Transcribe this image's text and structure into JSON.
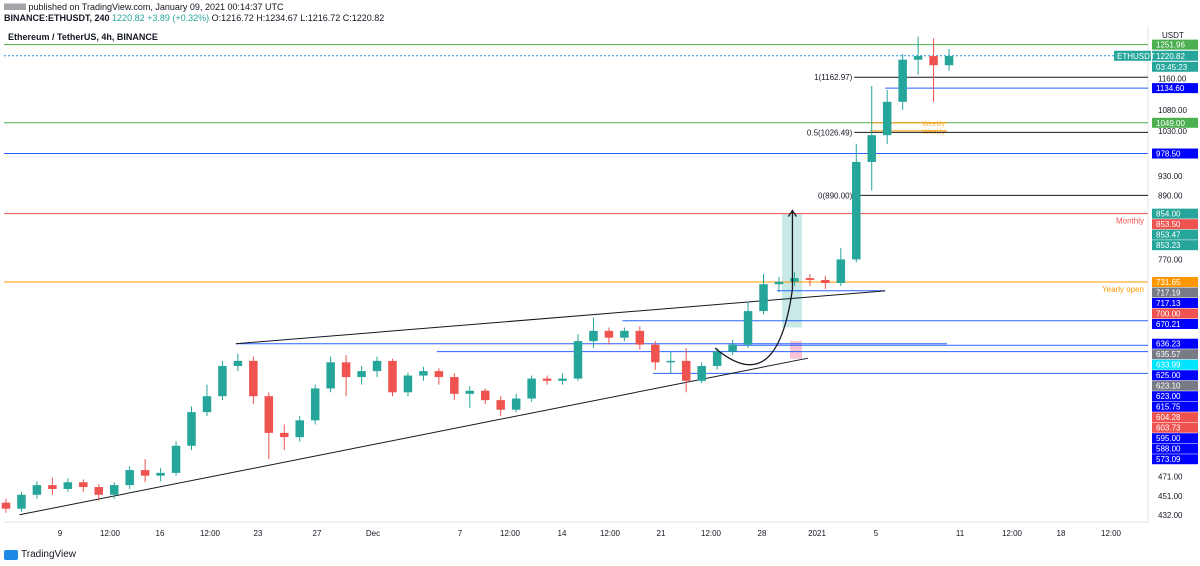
{
  "header": {
    "publisher": "lllllllllll published on TradingView.com, January 09, 2021 00:14:37 UTC",
    "symbol": "BINANCE:ETHUSDT, 240",
    "last": "1220.82",
    "change": "+3.89 (+0.32%)",
    "ohlc": "O:1216.72 H:1234.67 L:1216.72 C:1220.82"
  },
  "footer": {
    "brand": "TradingView"
  },
  "colors": {
    "up": "#26a69a",
    "down": "#ef5350",
    "blue": "#2962ff",
    "navy": "#0000ff",
    "green_line": "#4caf50",
    "red_line": "#ef5350",
    "orange_line": "#ff9800",
    "fib": "#131722",
    "teal_box": "#b2dfdb",
    "pink_box": "#f8bbd0"
  },
  "chart_data": {
    "type": "candlestick",
    "title": "Ethereum / TetherUS, 4h, BINANCE",
    "axis": {
      "unit": "USDT",
      "y_ticks": [
        1160.0,
        1080.0,
        1030.0,
        930.0,
        890.0,
        770.0,
        471.0,
        451.0,
        432.0
      ],
      "x_ticks": [
        "9",
        "12:00",
        "16",
        "12:00",
        "23",
        "27",
        "Dec",
        "7",
        "12:00",
        "14",
        "12:00",
        "21",
        "12:00",
        "28",
        "2021",
        "5",
        "11",
        "12:00",
        "18",
        "12:00"
      ],
      "x_range": [
        "2020-11-09",
        "2021-01-22"
      ],
      "y_range": [
        425,
        1300
      ],
      "scale": "log"
    },
    "price_labels": [
      {
        "value": "1251.96",
        "color": "#4caf50"
      },
      {
        "value": "1220.82",
        "color": "#26a69a",
        "tag": "ETHUSDT"
      },
      {
        "value": "03:45:23",
        "color": "#26a69a"
      },
      {
        "value": "1134.60",
        "color": "#0000ff"
      },
      {
        "value": "1049.00",
        "color": "#4caf50"
      },
      {
        "value": "978.50",
        "color": "#0000ff"
      },
      {
        "value": "854.00",
        "color": "#26a69a"
      },
      {
        "value": "853.50",
        "color": "#ef5350"
      },
      {
        "value": "853.47",
        "color": "#26a69a"
      },
      {
        "value": "853.23",
        "color": "#26a69a"
      },
      {
        "value": "731.65",
        "color": "#ff9800"
      },
      {
        "value": "717.19",
        "color": "#787b86"
      },
      {
        "value": "717.13",
        "color": "#0000ff"
      },
      {
        "value": "700.00",
        "color": "#ef5350"
      },
      {
        "value": "670.21",
        "color": "#0000ff"
      },
      {
        "value": "636.23",
        "color": "#0000ff"
      },
      {
        "value": "635.57",
        "color": "#787b86"
      },
      {
        "value": "633.99",
        "color": "#00e5ff"
      },
      {
        "value": "625.00",
        "color": "#0000ff"
      },
      {
        "value": "623.10",
        "color": "#787b86"
      },
      {
        "value": "623.00",
        "color": "#0000ff"
      },
      {
        "value": "615.75",
        "color": "#0000ff"
      },
      {
        "value": "604.28",
        "color": "#ef5350"
      },
      {
        "value": "603.73",
        "color": "#ef5350"
      },
      {
        "value": "595.00",
        "color": "#0000ff"
      },
      {
        "value": "588.00",
        "color": "#0000ff"
      },
      {
        "value": "573.09",
        "color": "#0000ff"
      }
    ],
    "horizontal_lines": [
      {
        "value": 1251.96,
        "color": "#4caf50"
      },
      {
        "value": 1220.82,
        "color": "#2196f3",
        "style": "dotted"
      },
      {
        "value": 1049.0,
        "color": "#4caf50"
      },
      {
        "value": 978.5,
        "color": "#2962ff"
      },
      {
        "value": 854.0,
        "color": "#ef5350",
        "label": "Monthly"
      },
      {
        "value": 731.65,
        "color": "#ff9800",
        "label": "Yearly open"
      }
    ],
    "segment_lines": [
      {
        "x0": "2020-11-24",
        "x1": "2021-01-09",
        "value": 636.23,
        "color": "#2962ff"
      },
      {
        "x0": "2020-12-26",
        "x1": "2021-01-22",
        "value": 633.99,
        "color": "#2962ff"
      },
      {
        "x0": "2020-12-07",
        "x1": "2021-01-22",
        "value": 625.0,
        "color": "#2962ff"
      },
      {
        "x0": "2020-12-19",
        "x1": "2021-01-22",
        "value": 670.21,
        "color": "#2962ff"
      },
      {
        "x0": "2020-12-21",
        "x1": "2021-01-22",
        "value": 595.0,
        "color": "#2962ff"
      },
      {
        "x0": "2020-12-29",
        "x1": "2021-01-05",
        "value": 717.19,
        "color": "#2962ff"
      },
      {
        "x0": "2021-01-05",
        "x1": "2021-01-22",
        "value": 1134.6,
        "color": "#2962ff"
      },
      {
        "x0": "2021-01-04",
        "x1": "2021-01-09",
        "value": 1049.0,
        "color": "#ff9800",
        "text": "Weekly"
      },
      {
        "x0": "2021-01-04",
        "x1": "2021-01-09",
        "value": 1030.0,
        "color": "#ff9800",
        "text": "Weekly"
      }
    ],
    "fibonacci": [
      {
        "level": "1",
        "value": 1162.97,
        "label": "1(1162.97)"
      },
      {
        "level": "0.5",
        "value": 1026.49,
        "label": "0.5(1026.49)"
      },
      {
        "level": "0",
        "value": 890.0,
        "label": "0(890.00)"
      }
    ],
    "trendlines": [
      {
        "from": [
          "2020-11-10",
          432
        ],
        "to": [
          "2020-12-31",
          615.75
        ]
      },
      {
        "from": [
          "2020-11-24",
          636.23
        ],
        "to": [
          "2021-01-05",
          717.13
        ]
      }
    ],
    "candles": [
      [
        "2020-11-09",
        444,
        438,
        448,
        434
      ],
      [
        "2020-11-10",
        438,
        452,
        455,
        435
      ],
      [
        "2020-11-11",
        452,
        462,
        466,
        448
      ],
      [
        "2020-11-12",
        462,
        458,
        470,
        452
      ],
      [
        "2020-11-13",
        458,
        465,
        469,
        455
      ],
      [
        "2020-11-14",
        465,
        460,
        468,
        455
      ],
      [
        "2020-11-15",
        460,
        452,
        463,
        446
      ],
      [
        "2020-11-16",
        452,
        462,
        465,
        448
      ],
      [
        "2020-11-17",
        462,
        478,
        482,
        458
      ],
      [
        "2020-11-18",
        478,
        472,
        490,
        465
      ],
      [
        "2020-11-19",
        472,
        475,
        480,
        466
      ],
      [
        "2020-11-20",
        475,
        505,
        510,
        472
      ],
      [
        "2020-11-21",
        505,
        545,
        552,
        500
      ],
      [
        "2020-11-22",
        545,
        565,
        580,
        540
      ],
      [
        "2020-11-23",
        565,
        605,
        612,
        560
      ],
      [
        "2020-11-24",
        605,
        612,
        622,
        598
      ],
      [
        "2020-11-25",
        612,
        565,
        618,
        555
      ],
      [
        "2020-11-26",
        565,
        520,
        570,
        490
      ],
      [
        "2020-11-27",
        520,
        515,
        530,
        500
      ],
      [
        "2020-11-28",
        515,
        535,
        540,
        510
      ],
      [
        "2020-11-29",
        535,
        575,
        580,
        530
      ],
      [
        "2020-11-30",
        575,
        610,
        618,
        570
      ],
      [
        "2020-12-01",
        610,
        590,
        620,
        565
      ],
      [
        "2020-12-02",
        590,
        598,
        605,
        580
      ],
      [
        "2020-12-03",
        598,
        612,
        618,
        590
      ],
      [
        "2020-12-04",
        612,
        570,
        615,
        565
      ],
      [
        "2020-12-05",
        570,
        592,
        596,
        565
      ],
      [
        "2020-12-06",
        592,
        598,
        604,
        585
      ],
      [
        "2020-12-07",
        598,
        590,
        602,
        580
      ],
      [
        "2020-12-08",
        590,
        568,
        595,
        560
      ],
      [
        "2020-12-09",
        568,
        572,
        578,
        550
      ],
      [
        "2020-12-10",
        572,
        560,
        575,
        555
      ],
      [
        "2020-12-11",
        560,
        548,
        565,
        540
      ],
      [
        "2020-12-12",
        548,
        562,
        568,
        545
      ],
      [
        "2020-12-13",
        562,
        588,
        592,
        558
      ],
      [
        "2020-12-14",
        588,
        585,
        592,
        580
      ],
      [
        "2020-12-15",
        585,
        588,
        595,
        580
      ],
      [
        "2020-12-16",
        588,
        640,
        650,
        585
      ],
      [
        "2020-12-17",
        640,
        655,
        675,
        630
      ],
      [
        "2020-12-18",
        655,
        645,
        660,
        635
      ],
      [
        "2020-12-19",
        645,
        655,
        660,
        640
      ],
      [
        "2020-12-20",
        655,
        635,
        662,
        628
      ],
      [
        "2020-12-21",
        635,
        610,
        640,
        600
      ],
      [
        "2020-12-22",
        610,
        612,
        625,
        595
      ],
      [
        "2020-12-23",
        612,
        585,
        630,
        570
      ],
      [
        "2020-12-24",
        585,
        605,
        610,
        582
      ],
      [
        "2020-12-25",
        605,
        625,
        630,
        600
      ],
      [
        "2020-12-26",
        625,
        635,
        642,
        620
      ],
      [
        "2020-12-27",
        635,
        685,
        700,
        630
      ],
      [
        "2020-12-28",
        685,
        728,
        745,
        680
      ],
      [
        "2020-12-29",
        728,
        732,
        740,
        715
      ],
      [
        "2020-12-30",
        732,
        738,
        748,
        725
      ],
      [
        "2020-12-31",
        738,
        735,
        745,
        725
      ],
      [
        "2021-01-01",
        735,
        730,
        742,
        720
      ],
      [
        "2021-01-02",
        730,
        770,
        790,
        725
      ],
      [
        "2021-01-03",
        770,
        960,
        1000,
        765
      ],
      [
        "2021-01-04",
        960,
        1020,
        1140,
        900
      ],
      [
        "2021-01-05",
        1020,
        1100,
        1130,
        1000
      ],
      [
        "2021-01-06",
        1100,
        1210,
        1225,
        1080
      ],
      [
        "2021-01-07",
        1210,
        1220,
        1275,
        1170
      ],
      [
        "2021-01-08",
        1220,
        1195,
        1270,
        1100
      ],
      [
        "2021-01-09",
        1195,
        1220,
        1240,
        1180
      ]
    ]
  }
}
